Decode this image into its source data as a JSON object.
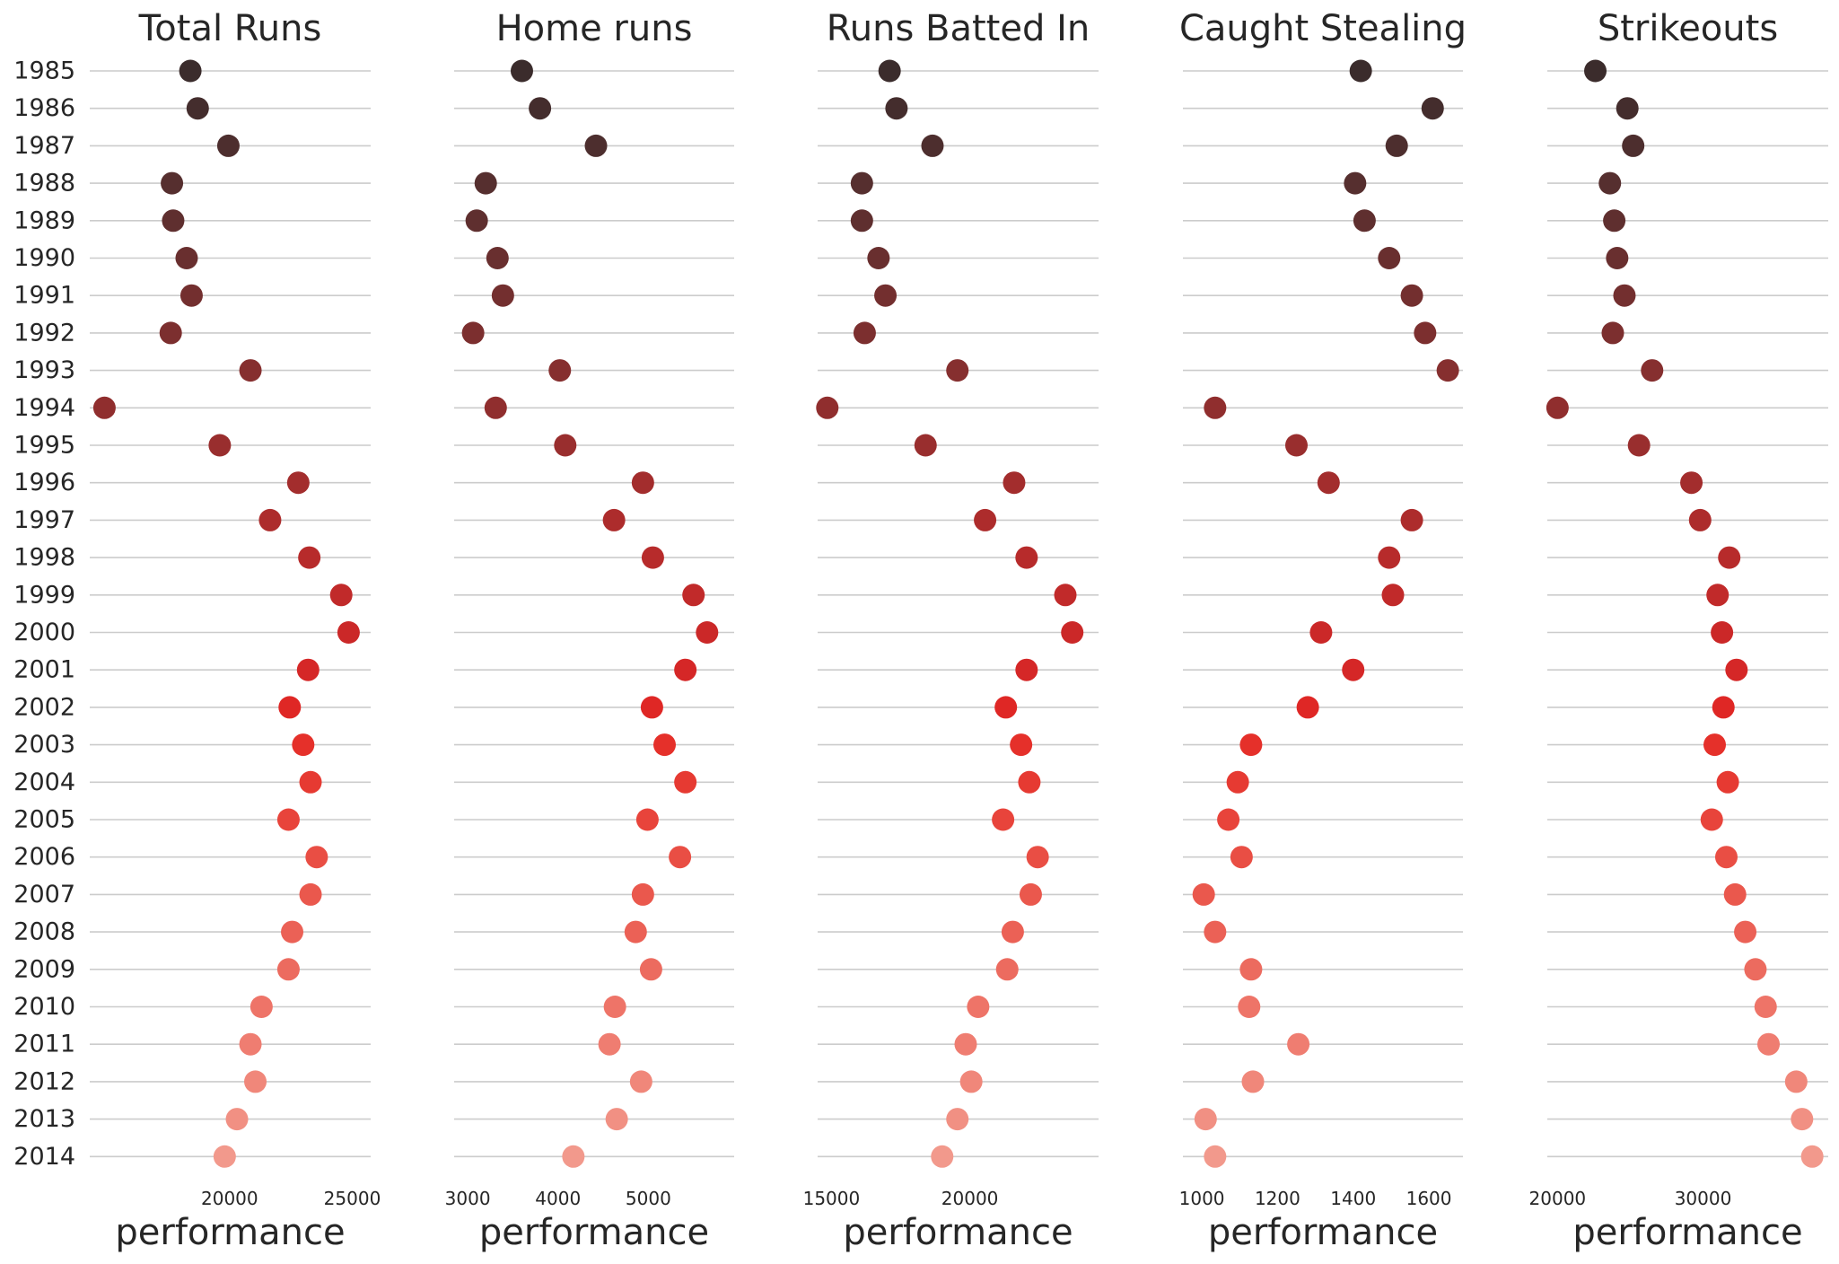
{
  "chart_data": {
    "type": "scatter",
    "style": "strip/dot plot, one panel per metric, shared year axis",
    "years": [
      "1985",
      "1986",
      "1987",
      "1988",
      "1989",
      "1990",
      "1991",
      "1992",
      "1993",
      "1994",
      "1995",
      "1996",
      "1997",
      "1998",
      "1999",
      "2000",
      "2001",
      "2002",
      "2003",
      "2004",
      "2005",
      "2006",
      "2007",
      "2008",
      "2009",
      "2010",
      "2011",
      "2012",
      "2013",
      "2014"
    ],
    "colors": [
      "#3b2c2c",
      "#442d2d",
      "#4d2e2e",
      "#562f2f",
      "#5f2f2f",
      "#692f2f",
      "#732f2f",
      "#7c2f2f",
      "#862f2f",
      "#902e2e",
      "#992e2e",
      "#a32d2d",
      "#ad2c2c",
      "#b72b2b",
      "#c12a2a",
      "#cb2828",
      "#d52727",
      "#df2725",
      "#e5302a",
      "#e63a32",
      "#e8443b",
      "#e94e44",
      "#ea584d",
      "#eb6156",
      "#ec6b5f",
      "#ee7468",
      "#ef7d71",
      "#f0877a",
      "#f19083",
      "#f2998c"
    ],
    "panels": [
      {
        "title": "Total Runs",
        "xlabel": "performance",
        "xticks": [
          20000,
          25000
        ],
        "xtick_labels": [
          "20000",
          "25000"
        ],
        "xlim": [
          14300,
          25750
        ],
        "values": [
          18400,
          18700,
          19950,
          17650,
          17700,
          18250,
          18450,
          17600,
          20850,
          14900,
          19600,
          22800,
          21650,
          23250,
          24550,
          24850,
          23200,
          22450,
          23000,
          23300,
          22400,
          23550,
          23300,
          22550,
          22400,
          21300,
          20850,
          21050,
          20300,
          19800
        ]
      },
      {
        "title": "Home runs",
        "xlabel": "performance",
        "xticks": [
          3000,
          4000,
          5000
        ],
        "xtick_labels": [
          "3000",
          "4000",
          "5000"
        ],
        "xlim": [
          2850,
          5950
        ],
        "values": [
          3600,
          3800,
          4420,
          3200,
          3100,
          3330,
          3390,
          3060,
          4020,
          3310,
          4080,
          4940,
          4620,
          5050,
          5500,
          5650,
          5410,
          5040,
          5180,
          5410,
          4990,
          5350,
          4940,
          4860,
          5030,
          4630,
          4570,
          4920,
          4650,
          4170
        ]
      },
      {
        "title": "Runs Batted In",
        "xlabel": "performance",
        "xticks": [
          15000,
          20000
        ],
        "xtick_labels": [
          "15000",
          "20000"
        ],
        "xlim": [
          14500,
          24650
        ],
        "values": [
          17100,
          17350,
          18650,
          16100,
          16100,
          16700,
          16950,
          16200,
          19550,
          14850,
          18400,
          21600,
          20550,
          22050,
          23450,
          23700,
          22050,
          21300,
          21850,
          22150,
          21200,
          22450,
          22200,
          21550,
          21350,
          20300,
          19850,
          20050,
          19550,
          19000
        ]
      },
      {
        "title": "Caught Stealing",
        "xlabel": "performance",
        "xticks": [
          1000,
          1200,
          1400,
          1600
        ],
        "xtick_labels": [
          "1000",
          "1200",
          "1400",
          "1600"
        ],
        "xlim": [
          950,
          1690
        ],
        "values": [
          1420,
          1610,
          1515,
          1405,
          1430,
          1495,
          1555,
          1590,
          1650,
          1035,
          1250,
          1335,
          1555,
          1495,
          1505,
          1315,
          1400,
          1280,
          1130,
          1095,
          1070,
          1105,
          1005,
          1035,
          1130,
          1125,
          1255,
          1135,
          1010,
          1035
        ]
      },
      {
        "title": "Strikeouts",
        "xlabel": "performance",
        "xticks": [
          20000,
          30000
        ],
        "xtick_labels": [
          "20000",
          "30000"
        ],
        "xlim": [
          19300,
          38600
        ],
        "values": [
          22600,
          24800,
          25200,
          23600,
          23900,
          24100,
          24600,
          23800,
          26500,
          20000,
          25600,
          29200,
          29800,
          31800,
          31000,
          31300,
          32300,
          31400,
          30800,
          31700,
          30600,
          31600,
          32200,
          32900,
          33600,
          34300,
          34500,
          36400,
          36800,
          37500
        ]
      }
    ]
  }
}
